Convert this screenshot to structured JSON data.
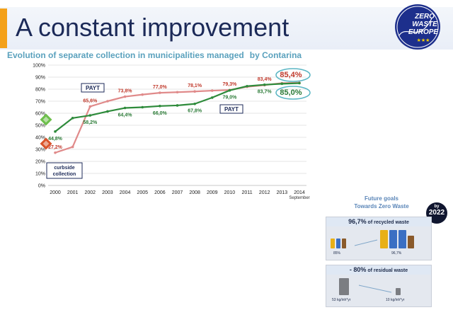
{
  "slide": {
    "title": "A constant improvement"
  },
  "logo": {
    "line1": "ZERO",
    "line2": "WASTE",
    "line3": "EUROPE"
  },
  "subtitle": {
    "main": "Evolution of separate collection in municipalities managed",
    "by": "by Contarina"
  },
  "colors": {
    "red_series": "#e08a8a",
    "green_series": "#2e8b3b",
    "accent": "#f4a11a",
    "title": "#1c2a58",
    "subtitle": "#5aa1bd"
  },
  "chart_data": {
    "type": "line",
    "x": [
      "2000",
      "2001",
      "2002",
      "2003",
      "2004",
      "2005",
      "2006",
      "2007",
      "2008",
      "2009",
      "2010",
      "2011",
      "2012",
      "2013",
      "2014"
    ],
    "x_sublabel": "September",
    "yticks": [
      "0%",
      "10%",
      "20%",
      "30%",
      "40%",
      "50%",
      "60%",
      "70%",
      "80%",
      "90%",
      "100%"
    ],
    "ylim": [
      0,
      100
    ],
    "grid": true,
    "series": [
      {
        "values": [
          27.2,
          32,
          65.6,
          70,
          73.8,
          75.5,
          77.0,
          77.5,
          78.1,
          78.8,
          79.3,
          82,
          83.4,
          85,
          85.4
        ]
      },
      {
        "values": [
          44.8,
          56,
          58.2,
          61.5,
          64.4,
          65,
          66.0,
          66.5,
          67.8,
          73,
          79.0,
          82.5,
          83.7,
          84.5,
          85.0
        ]
      }
    ],
    "labels": [
      {
        "series": 0,
        "index": 0,
        "text": "27,2%"
      },
      {
        "series": 0,
        "index": 2,
        "text": "65,6%"
      },
      {
        "series": 0,
        "index": 4,
        "text": "73,8%"
      },
      {
        "series": 0,
        "index": 6,
        "text": "77,0%"
      },
      {
        "series": 0,
        "index": 8,
        "text": "78,1%"
      },
      {
        "series": 0,
        "index": 10,
        "text": "79,3%"
      },
      {
        "series": 0,
        "index": 12,
        "text": "83,4%"
      },
      {
        "series": 0,
        "index": 14,
        "text": "85,4%"
      },
      {
        "series": 1,
        "index": 0,
        "text": "44,8%"
      },
      {
        "series": 1,
        "index": 2,
        "text": "58,2%"
      },
      {
        "series": 1,
        "index": 4,
        "text": "64,4%"
      },
      {
        "series": 1,
        "index": 6,
        "text": "66,0%"
      },
      {
        "series": 1,
        "index": 8,
        "text": "67,8%"
      },
      {
        "series": 1,
        "index": 10,
        "text": "79,0%"
      },
      {
        "series": 1,
        "index": 12,
        "text": "83,7%"
      },
      {
        "series": 1,
        "index": 14,
        "text": "85,0%"
      }
    ],
    "annotations": [
      {
        "text": "PAYT",
        "near": "2002 red series"
      },
      {
        "text": "PAYT",
        "near": "2010 green series"
      },
      {
        "text": "curbside collection",
        "near": "2000"
      }
    ]
  },
  "goals": {
    "title_line1": "Future goals",
    "title_line2": "Towards Zero Waste",
    "by_label": "by",
    "by_year": "2022",
    "recycled": {
      "pct": "96,7%",
      "text": "of recycled waste",
      "from": "85%",
      "to": "96,7%"
    },
    "residual": {
      "pct": "- 80%",
      "text": "of residual waste",
      "from": "53 kg/inh*yr",
      "to": "10 kg/inh*yr"
    }
  }
}
